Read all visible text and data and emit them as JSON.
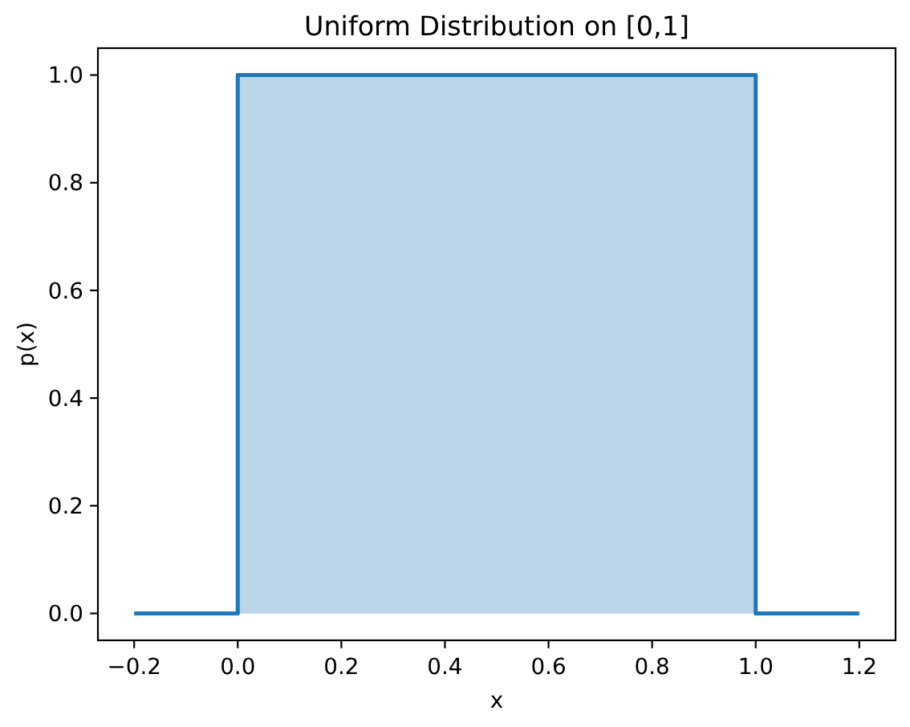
{
  "chart_data": {
    "type": "line",
    "title": "Uniform Distribution on [0,1]",
    "xlabel": "x",
    "ylabel": "p(x)",
    "xlim": [
      -0.27,
      1.27
    ],
    "ylim": [
      -0.05,
      1.05
    ],
    "xticks": [
      {
        "value": -0.2,
        "label": "−0.2"
      },
      {
        "value": 0,
        "label": "0.0"
      },
      0.2,
      0.4,
      0.6,
      0.8,
      {
        "value": 1,
        "label": "1.0"
      },
      1.2
    ],
    "yticks": [
      {
        "value": 0,
        "label": "0.0"
      },
      0.2,
      0.4,
      0.6,
      0.8,
      {
        "value": 1,
        "label": "1.0"
      }
    ],
    "series": [
      {
        "type": "area",
        "color": "#bbd6e8",
        "x": [
          0,
          1
        ],
        "values": [
          1,
          1
        ]
      },
      {
        "type": "line",
        "color": "#1f77b4",
        "x": [
          -0.2,
          0,
          0,
          1,
          1,
          1.2
        ],
        "values": [
          0,
          0,
          1,
          1,
          0,
          0
        ]
      }
    ]
  }
}
